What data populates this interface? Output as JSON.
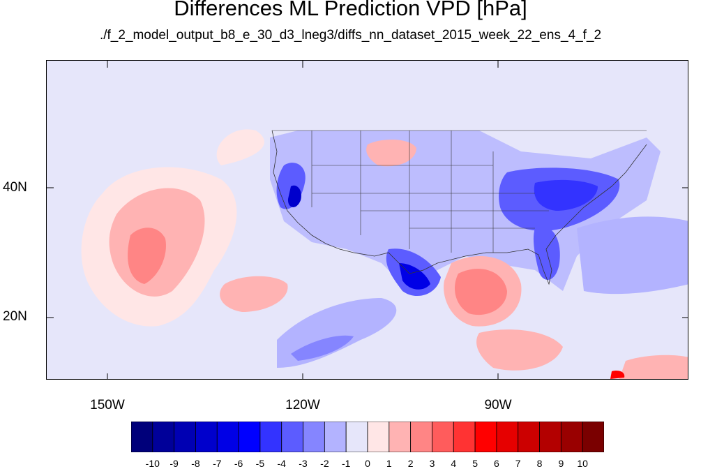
{
  "title": "Differences ML Prediction VPD [hPa]",
  "subtitle": "./f_2_model_output_b8_e_30_d3_lneg3/diffs_nn_dataset_2015_week_22_ens_4_f_2",
  "lat_labels": [
    "40N",
    "20N"
  ],
  "lon_labels": [
    "150W",
    "120W",
    "90W"
  ],
  "colorbar": {
    "labels": [
      "-10",
      "-9",
      "-8",
      "-7",
      "-6",
      "-5",
      "-4",
      "-3",
      "-2",
      "-1",
      "0",
      "1",
      "2",
      "3",
      "4",
      "5",
      "6",
      "7",
      "8",
      "9",
      "10"
    ],
    "colors": [
      "#00007a",
      "#000099",
      "#0000b3",
      "#0000cc",
      "#0000e6",
      "#0000ff",
      "#3333ff",
      "#5c5cff",
      "#8585ff",
      "#b3b3ff",
      "#e6e6fa",
      "#ffe6e6",
      "#ffb3b3",
      "#ff8585",
      "#ff5c5c",
      "#ff3333",
      "#ff0000",
      "#e60000",
      "#cc0000",
      "#b30000",
      "#990000",
      "#7a0000"
    ]
  }
}
